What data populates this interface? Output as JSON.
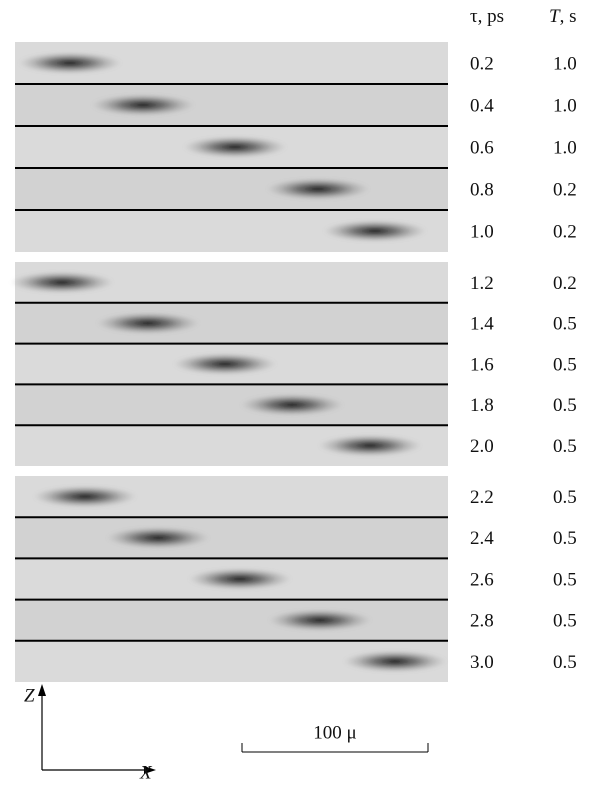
{
  "table": {
    "headers": [
      {
        "symbol": "τ",
        "unit": ", ps"
      },
      {
        "symbol": "T",
        "unit": ", s"
      }
    ],
    "rows": [
      [
        "0.2",
        "1.0"
      ],
      [
        "0.4",
        "1.0"
      ],
      [
        "0.6",
        "1.0"
      ],
      [
        "0.8",
        "0.2"
      ],
      [
        "1.0",
        "0.2"
      ],
      [
        "1.2",
        "0.2"
      ],
      [
        "1.4",
        "0.5"
      ],
      [
        "1.6",
        "0.5"
      ],
      [
        "1.8",
        "0.5"
      ],
      [
        "2.0",
        "0.5"
      ],
      [
        "2.2",
        "0.5"
      ],
      [
        "2.4",
        "0.5"
      ],
      [
        "2.6",
        "0.5"
      ],
      [
        "2.8",
        "0.5"
      ],
      [
        "3.0",
        "0.5"
      ]
    ]
  },
  "axes": {
    "vertical": "Z",
    "horizontal": "X"
  },
  "scale_bar": {
    "label": "100 μ"
  }
}
